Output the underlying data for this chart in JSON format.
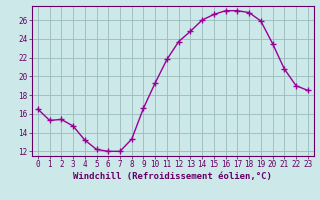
{
  "x": [
    0,
    1,
    2,
    3,
    4,
    5,
    6,
    7,
    8,
    9,
    10,
    11,
    12,
    13,
    14,
    15,
    16,
    17,
    18,
    19,
    20,
    21,
    22,
    23
  ],
  "y": [
    16.5,
    15.3,
    15.4,
    14.7,
    13.2,
    12.2,
    12.0,
    12.0,
    13.3,
    16.6,
    19.3,
    21.8,
    23.7,
    24.8,
    26.0,
    26.6,
    27.0,
    27.0,
    26.8,
    25.9,
    23.5,
    20.8,
    19.0,
    18.5
  ],
  "line_color": "#990099",
  "marker": "+",
  "marker_size": 4,
  "marker_lw": 1.0,
  "bg_color": "#cce8e8",
  "grid_color": "#99bbbb",
  "xlabel": "Windchill (Refroidissement éolien,°C)",
  "xlim": [
    -0.5,
    23.5
  ],
  "ylim": [
    11.5,
    27.5
  ],
  "yticks": [
    12,
    14,
    16,
    18,
    20,
    22,
    24,
    26
  ],
  "xticks": [
    0,
    1,
    2,
    3,
    4,
    5,
    6,
    7,
    8,
    9,
    10,
    11,
    12,
    13,
    14,
    15,
    16,
    17,
    18,
    19,
    20,
    21,
    22,
    23
  ],
  "tick_label_size": 5.5,
  "xlabel_size": 6.5,
  "axis_color": "#660066",
  "spine_color": "#660066",
  "linewidth": 1.0
}
